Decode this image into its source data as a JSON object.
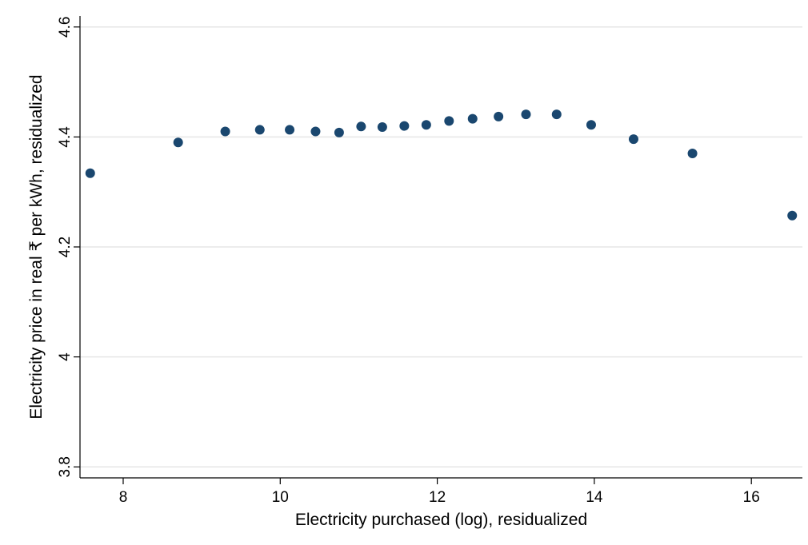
{
  "chart_data": {
    "type": "scatter",
    "xlabel": "Electricity purchased (log), residualized",
    "ylabel": "Electricity price in real ₹ per kWh, residualized",
    "xlim": [
      7.45,
      16.65
    ],
    "ylim": [
      3.78,
      4.62
    ],
    "x_ticks": [
      8,
      10,
      12,
      14,
      16
    ],
    "y_ticks": [
      3.8,
      4,
      4.2,
      4.4,
      4.6
    ],
    "x_tick_labels": [
      "8",
      "10",
      "12",
      "14",
      "16"
    ],
    "y_tick_labels": [
      "3.8",
      "4",
      "4.2",
      "4.4",
      "4.6"
    ],
    "grid": "horizontal",
    "point_color": "#1a476f",
    "points": [
      {
        "x": 7.58,
        "y": 4.334
      },
      {
        "x": 8.7,
        "y": 4.39
      },
      {
        "x": 9.3,
        "y": 4.41
      },
      {
        "x": 9.74,
        "y": 4.413
      },
      {
        "x": 10.12,
        "y": 4.413
      },
      {
        "x": 10.45,
        "y": 4.41
      },
      {
        "x": 10.75,
        "y": 4.408
      },
      {
        "x": 11.03,
        "y": 4.419
      },
      {
        "x": 11.3,
        "y": 4.418
      },
      {
        "x": 11.58,
        "y": 4.42
      },
      {
        "x": 11.86,
        "y": 4.422
      },
      {
        "x": 12.15,
        "y": 4.429
      },
      {
        "x": 12.45,
        "y": 4.433
      },
      {
        "x": 12.78,
        "y": 4.437
      },
      {
        "x": 13.13,
        "y": 4.441
      },
      {
        "x": 13.52,
        "y": 4.441
      },
      {
        "x": 13.96,
        "y": 4.422
      },
      {
        "x": 14.5,
        "y": 4.396
      },
      {
        "x": 15.25,
        "y": 4.37
      },
      {
        "x": 16.52,
        "y": 4.257
      }
    ]
  }
}
